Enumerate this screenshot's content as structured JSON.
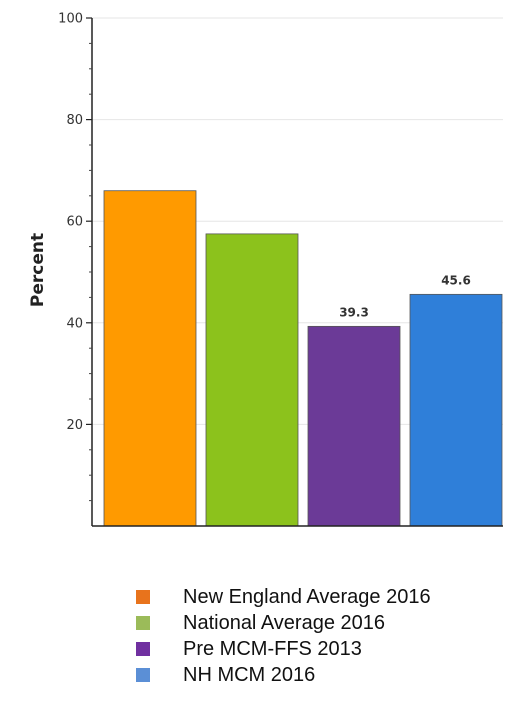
{
  "chart_data": {
    "type": "bar",
    "title": "",
    "xlabel": "",
    "ylabel": "Percent",
    "ylim": [
      0,
      100
    ],
    "yticks": [
      20,
      40,
      60,
      80,
      100
    ],
    "grid": true,
    "legend_position": "bottom",
    "categories": [
      "New England Average 2016",
      "National Average 2016",
      "Pre MCM-FFS 2013",
      "NH MCM 2016"
    ],
    "values": [
      66,
      57.5,
      39.3,
      45.6
    ],
    "data_labels": [
      "",
      "",
      "39.3",
      "45.6"
    ],
    "bar_colors": [
      "#ff9a00",
      "#8cc21c",
      "#6b3a97",
      "#2f7fd9"
    ],
    "legend": [
      {
        "label": "New England Average 2016",
        "color": "#e8731c"
      },
      {
        "label": "National Average 2016",
        "color": "#9bbb59"
      },
      {
        "label": "Pre MCM-FFS 2013",
        "color": "#7030a0"
      },
      {
        "label": "NH MCM 2016",
        "color": "#5b8fd6"
      }
    ]
  }
}
